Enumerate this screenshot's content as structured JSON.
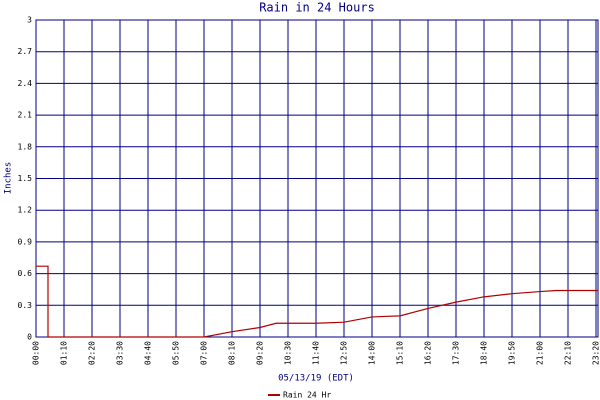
{
  "chart_data": {
    "type": "line",
    "title": "Rain in 24 Hours",
    "x_label": "05/13/19 (EDT)",
    "y_label": "Inches",
    "x": [
      0,
      30,
      30,
      420,
      490,
      560,
      600,
      700,
      770,
      840,
      910,
      980,
      1050,
      1120,
      1190,
      1260,
      1300,
      1405
    ],
    "series": [
      {
        "name": "Rain 24 Hr",
        "color": "#b00000",
        "values": [
          0.67,
          0.67,
          0,
          0,
          0.05,
          0.09,
          0.13,
          0.13,
          0.14,
          0.19,
          0.2,
          0.27,
          0.33,
          0.38,
          0.41,
          0.43,
          0.44,
          0.44
        ]
      }
    ],
    "xlim": [
      0,
      1405
    ],
    "xticks": [
      {
        "value": 0,
        "label": "00:00"
      },
      {
        "value": 70,
        "label": "01:10"
      },
      {
        "value": 140,
        "label": "02:20"
      },
      {
        "value": 210,
        "label": "03:30"
      },
      {
        "value": 280,
        "label": "04:40"
      },
      {
        "value": 350,
        "label": "05:50"
      },
      {
        "value": 420,
        "label": "07:00"
      },
      {
        "value": 490,
        "label": "08:10"
      },
      {
        "value": 560,
        "label": "09:20"
      },
      {
        "value": 630,
        "label": "10:30"
      },
      {
        "value": 700,
        "label": "11:40"
      },
      {
        "value": 770,
        "label": "12:50"
      },
      {
        "value": 840,
        "label": "14:00"
      },
      {
        "value": 910,
        "label": "15:10"
      },
      {
        "value": 980,
        "label": "16:20"
      },
      {
        "value": 1050,
        "label": "17:30"
      },
      {
        "value": 1120,
        "label": "18:40"
      },
      {
        "value": 1190,
        "label": "19:50"
      },
      {
        "value": 1260,
        "label": "21:00"
      },
      {
        "value": 1330,
        "label": "22:10"
      },
      {
        "value": 1400,
        "label": "23:20"
      }
    ],
    "ylim": [
      0,
      3
    ],
    "yticks": [
      0,
      0.3,
      0.6,
      0.9,
      1.2,
      1.5,
      1.8,
      2.1,
      2.4,
      2.7,
      3
    ],
    "grid": true,
    "grid_color": "#000080",
    "legend": "bottom"
  }
}
